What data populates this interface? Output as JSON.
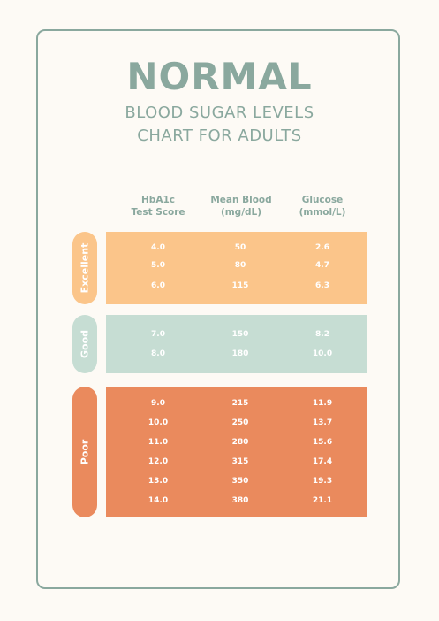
{
  "title": "NORMAL",
  "subtitle_line1": "BLOOD SUGAR LEVELS",
  "subtitle_line2": "CHART FOR ADULTS",
  "columns": [
    {
      "line1": "HbA1c",
      "line2": "Test Score"
    },
    {
      "line1": "Mean Blood",
      "line2": "(mg/dL)"
    },
    {
      "line1": "Glucose",
      "line2": "(mmol/L)"
    }
  ],
  "colors": {
    "frame": "#8aa89e",
    "excellent": "#fbc58a",
    "good": "#c6ddd3",
    "poor": "#ea8a5d",
    "background": "#fdfaf5"
  },
  "groups": [
    {
      "label": "Excellent",
      "rows": [
        {
          "hba1c": "4.0",
          "mg_dl": "50",
          "mmol_l": "2.6"
        },
        {
          "hba1c": "5.0",
          "mg_dl": "80",
          "mmol_l": "4.7"
        },
        {
          "hba1c": "6.0",
          "mg_dl": "115",
          "mmol_l": "6.3"
        }
      ]
    },
    {
      "label": "Good",
      "rows": [
        {
          "hba1c": "7.0",
          "mg_dl": "150",
          "mmol_l": "8.2"
        },
        {
          "hba1c": "8.0",
          "mg_dl": "180",
          "mmol_l": "10.0"
        }
      ]
    },
    {
      "label": "Poor",
      "rows": [
        {
          "hba1c": "9.0",
          "mg_dl": "215",
          "mmol_l": "11.9"
        },
        {
          "hba1c": "10.0",
          "mg_dl": "250",
          "mmol_l": "13.7"
        },
        {
          "hba1c": "11.0",
          "mg_dl": "280",
          "mmol_l": "15.6"
        },
        {
          "hba1c": "12.0",
          "mg_dl": "315",
          "mmol_l": "17.4"
        },
        {
          "hba1c": "13.0",
          "mg_dl": "350",
          "mmol_l": "19.3"
        },
        {
          "hba1c": "14.0",
          "mg_dl": "380",
          "mmol_l": "21.1"
        }
      ]
    }
  ]
}
